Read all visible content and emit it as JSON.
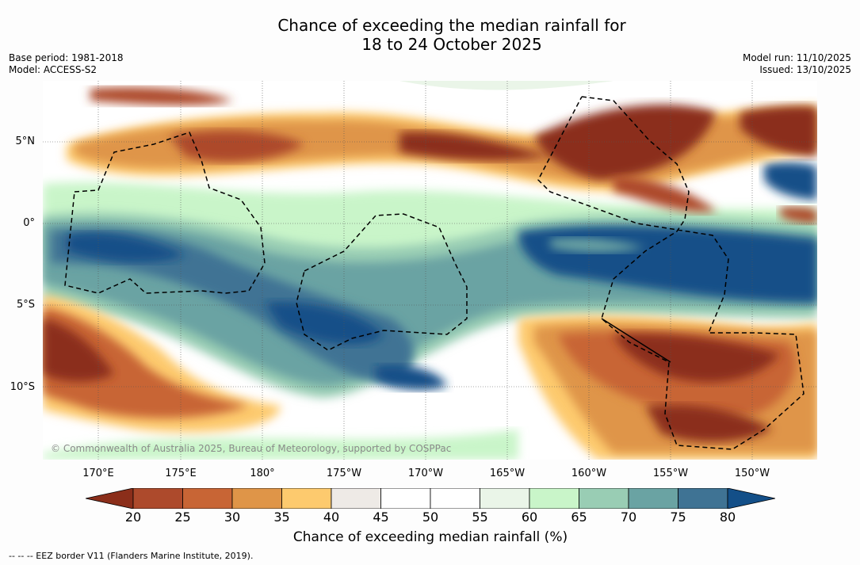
{
  "title_line1": "Chance of exceeding the median rainfall for",
  "title_line2": "18 to 24 October 2025",
  "base_period": "Base period: 1981-2018",
  "model": "Model: ACCESS-S2",
  "model_run": "Model run: 11/10/2025",
  "issued": "Issued: 13/10/2025",
  "lat_labels": [
    "5°N",
    "0°",
    "5°S",
    "10°S"
  ],
  "lon_labels": [
    "170°E",
    "175°E",
    "180°",
    "175°W",
    "170°W",
    "165°W",
    "160°W",
    "155°W",
    "150°W"
  ],
  "copyright": "© Commonwealth of Australia 2025, Bureau of Meteorology, supported by COSPPac",
  "colorbar": {
    "ticks": [
      "20",
      "25",
      "30",
      "35",
      "40",
      "45",
      "50",
      "55",
      "60",
      "65",
      "70",
      "75",
      "80"
    ],
    "colors": [
      "#8b2e1a",
      "#ad4a2c",
      "#c86535",
      "#df9548",
      "#fdca6e",
      "#eeeae6",
      "#ffffff",
      "#ffffff",
      "#eaf5e8",
      "#c9f5c9",
      "#99cdb4",
      "#6aa3a3",
      "#3f7394",
      "#134f88"
    ],
    "title": "Chance of exceeding median rainfall (%)"
  },
  "footnote": "--  --  -- EEZ border V11 (Flanders Marine Institute, 2019)."
}
